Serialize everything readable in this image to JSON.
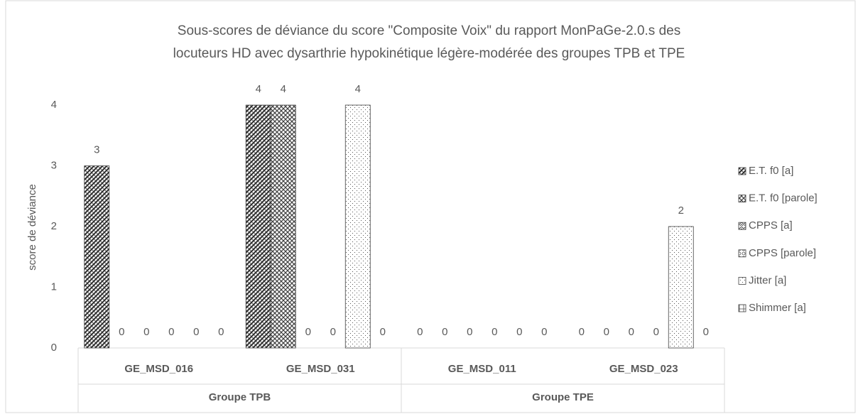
{
  "chart_data": {
    "type": "bar",
    "title": [
      "Sous-scores de déviance du score \"Composite Voix\" du rapport MonPaGe-2.0.s des",
      "locuteurs HD avec dysarthrie hypokinétique légère-modérée des groupes TPB et TPE"
    ],
    "y_label": "score de déviance",
    "categories": [
      "GE_MSD_016",
      "GE_MSD_031",
      "GE_MSD_011",
      "GE_MSD_023"
    ],
    "groups": [
      {
        "name": "Groupe TPB",
        "size": 2
      },
      {
        "name": "Groupe TPE",
        "size": 2
      }
    ],
    "series": [
      {
        "name": "E.T. f0 [a]",
        "color": "#303030",
        "values": [
          3,
          4,
          0,
          0
        ]
      },
      {
        "name": "E.T. f0 [parole]",
        "color": "#404040",
        "values": [
          0,
          4,
          0,
          0
        ]
      },
      {
        "name": "CPPS [a]",
        "color": "#505050",
        "values": [
          0,
          0,
          0,
          0
        ]
      },
      {
        "name": "CPPS [parole]",
        "color": "#606060",
        "values": [
          0,
          0,
          0,
          0
        ]
      },
      {
        "name": "Jitter [a]",
        "color": "#555555",
        "values": [
          0,
          4,
          0,
          2
        ]
      },
      {
        "name": "Shimmer [a]",
        "color": "#505050",
        "values": [
          0,
          0,
          0,
          0
        ]
      }
    ],
    "ylim": [
      0,
      4
    ],
    "yticks": [
      0,
      1,
      2,
      3,
      4
    ],
    "grid": false,
    "legend": "right",
    "data_labels": true
  }
}
